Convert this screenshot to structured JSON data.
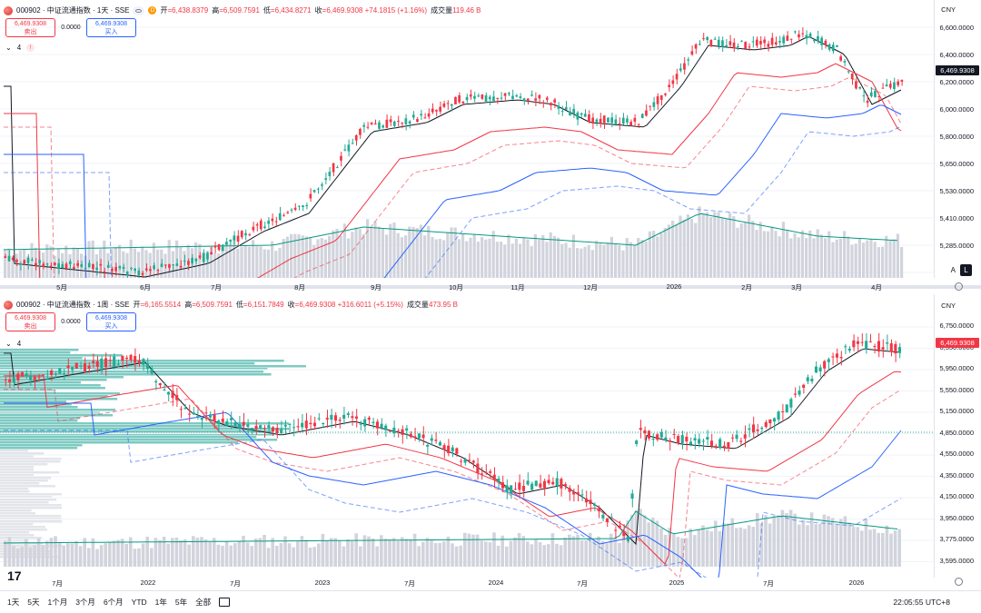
{
  "daily": {
    "symbol_line": "000902 · 中证流通指数 · 1天 · SSE",
    "badge": "D",
    "o_label": "开",
    "o_val": "=6,438.8379",
    "h_label": "高",
    "h_val": "=6,509.7591",
    "l_label": "低",
    "l_val": "=6,434.8271",
    "c_label": "收",
    "c_val": "=6,469.9308 +74.1815 (+1.16%)",
    "v_label": "成交量",
    "v_val": "119.46 B",
    "sell_price": "6,469.9308",
    "sell_label": "卖出",
    "spread": "0.0000",
    "buy_price": "6,469.9308",
    "buy_label": "买入",
    "indicator_count": "4",
    "alert_mark": "!",
    "currency": "CNY",
    "price_labels": [
      "6,600.0000",
      "6,400.0000",
      "6,200.0000",
      "6,000.0000",
      "5,800.0000",
      "5,650.0000",
      "5,530.0000",
      "5,410.0000",
      "5,285.0000"
    ],
    "last_price": "6,469.9308",
    "time_labels": [
      "5月",
      "6月",
      "7月",
      "8月",
      "9月",
      "10月",
      "11月",
      "12月",
      "2026",
      "2月",
      "3月",
      "4月"
    ],
    "auto_label": "A",
    "log_label": "L"
  },
  "weekly": {
    "symbol_line": "000902 · 中证流通指数 · 1周 · SSE",
    "o_label": "开",
    "o_val": "=6,165.5514",
    "h_label": "高",
    "h_val": "=6,509.7591",
    "l_label": "低",
    "l_val": "=6,151.7849",
    "c_label": "收",
    "c_val": "=6,469.9308 +316.6011 (+5.15%)",
    "v_label": "成交量",
    "v_val": "473.95 B",
    "sell_price": "6,469.9308",
    "sell_label": "卖出",
    "spread": "0.0000",
    "buy_price": "6,469.9308",
    "buy_label": "买入",
    "indicator_count": "4",
    "currency": "CNY",
    "price_labels": [
      "6,750.0000",
      "6,350.0000",
      "5,950.0000",
      "5,550.0000",
      "5,150.0000",
      "4,850.0000",
      "4,550.0000",
      "4,350.0000",
      "4,150.0000",
      "3,950.0000",
      "3,775.0000",
      "3,595.0000"
    ],
    "last_price": "6,469.9308",
    "time_labels": [
      "7月",
      "2022",
      "7月",
      "2023",
      "7月",
      "2024",
      "7月",
      "2025",
      "7月",
      "2026"
    ]
  },
  "toolbar": {
    "ranges": [
      "1天",
      "5天",
      "1个月",
      "3个月",
      "6个月",
      "YTD",
      "1年",
      "5年",
      "全部"
    ],
    "clock": "22:05:55 UTC+8"
  },
  "colors": {
    "up": "#f23645",
    "down": "#22ab94",
    "neutral": "#9598a1",
    "ma_fast": "#131722",
    "ma_mid": "#f23645",
    "ma_slow": "#2962ff",
    "vol_ma": "#089981",
    "profile": "#26a69a"
  }
}
